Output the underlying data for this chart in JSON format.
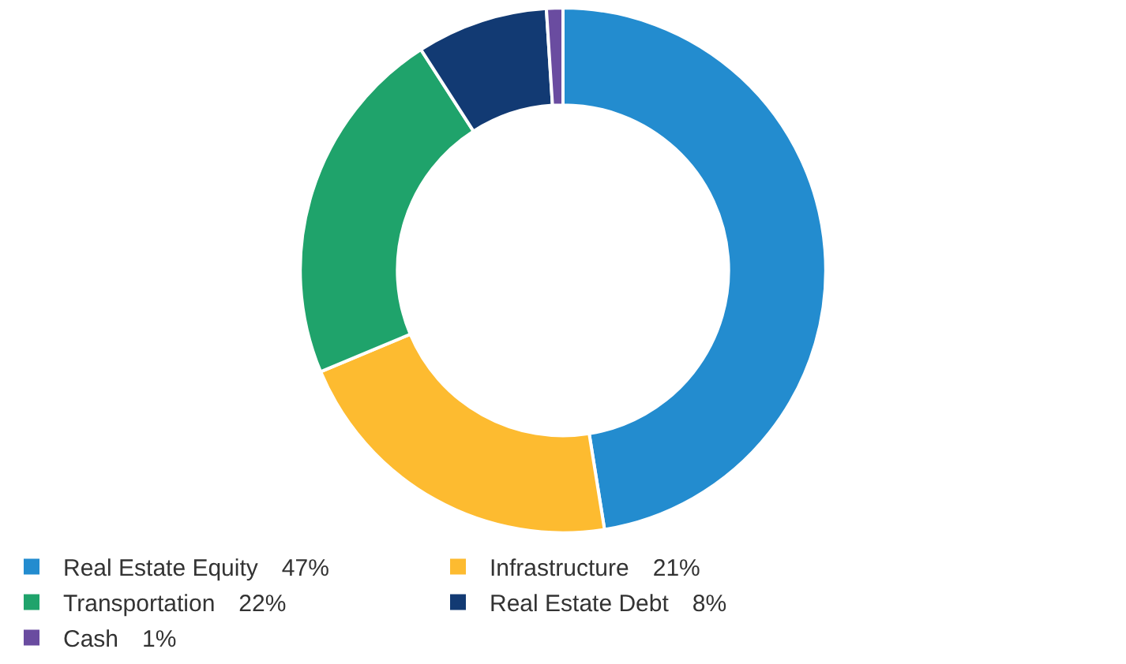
{
  "chart_data": {
    "type": "donut",
    "categories": [
      "Real Estate Equity",
      "Infrastructure",
      "Transportation",
      "Real Estate Debt",
      "Cash"
    ],
    "values": [
      47,
      21,
      22,
      8,
      1
    ],
    "value_labels": [
      "47%",
      "21%",
      "22%",
      "8%",
      "1%"
    ],
    "colors": [
      "#238ccf",
      "#fdbb30",
      "#1fa36b",
      "#123a73",
      "#6a4ca0"
    ],
    "legend": "bottom"
  }
}
